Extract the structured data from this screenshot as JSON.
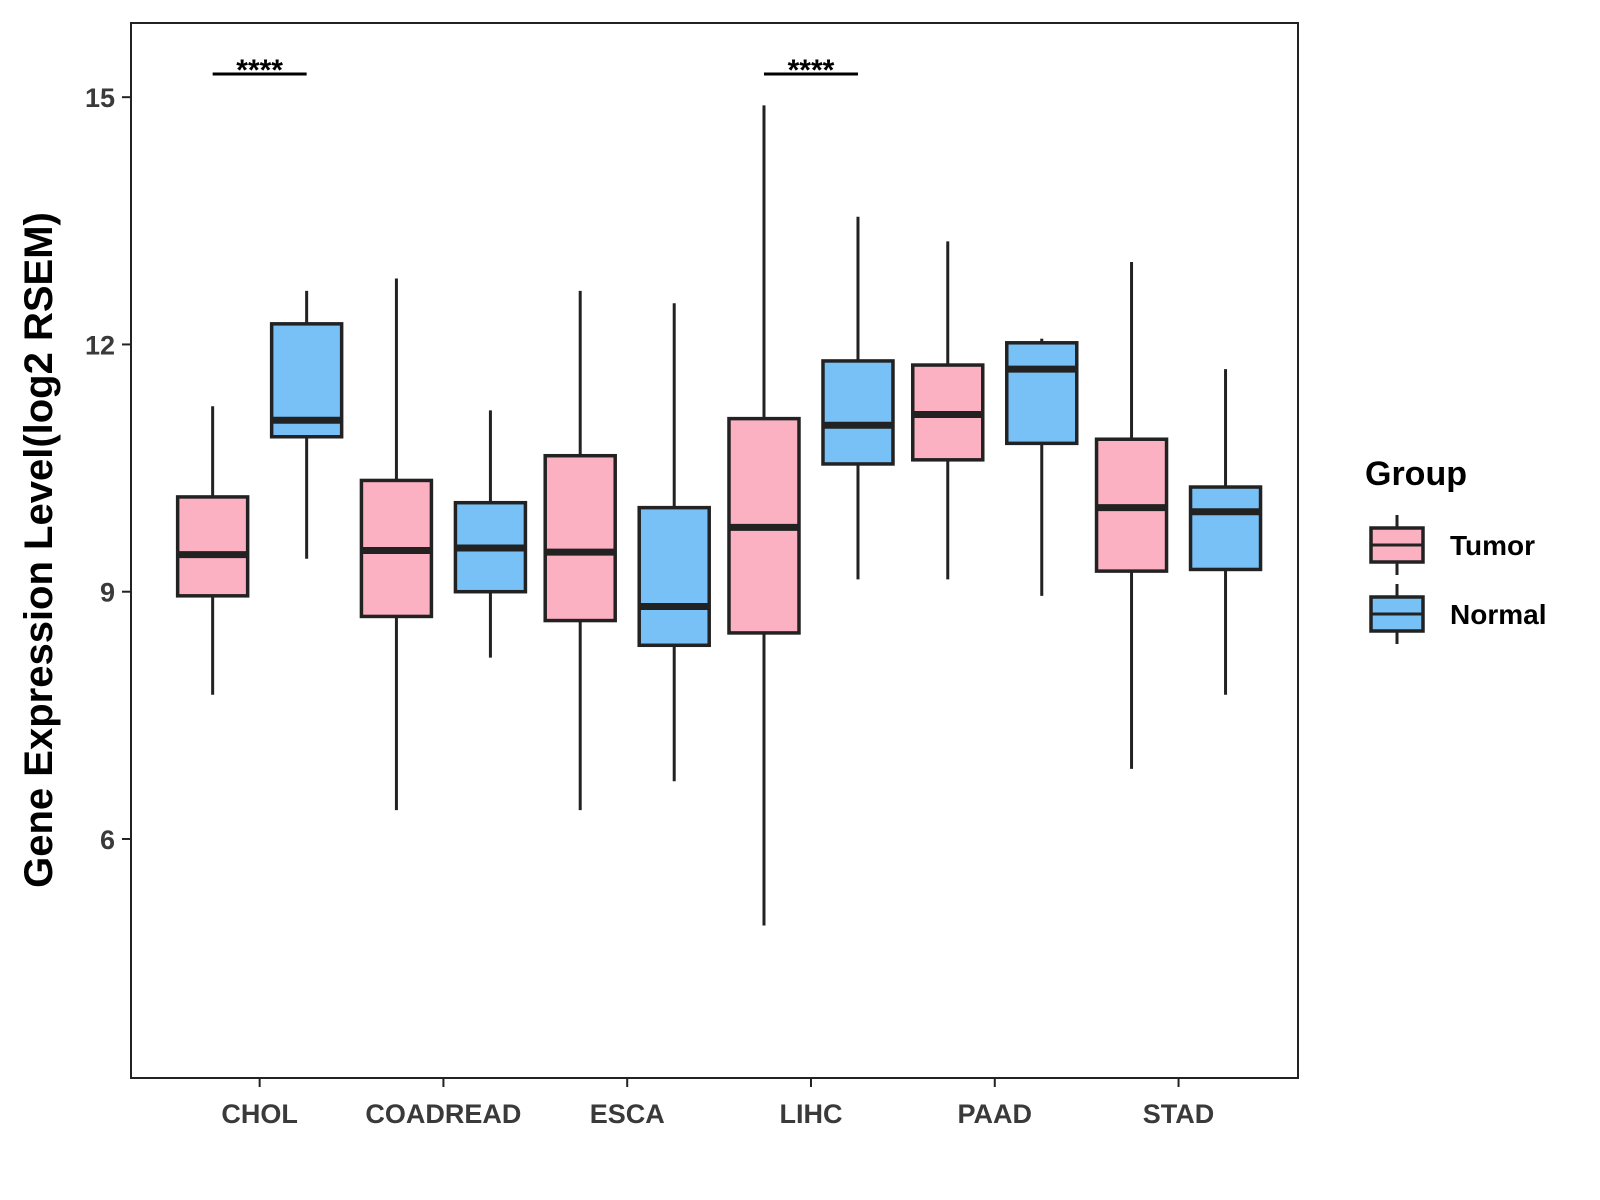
{
  "chart_data": {
    "type": "boxplot",
    "title": "",
    "xlabel": "",
    "ylabel": "Gene Expression Level(log2 RSEM)",
    "ylim": [
      3.1,
      15.9
    ],
    "yticks": [
      6,
      9,
      12,
      15
    ],
    "categories": [
      "CHOL",
      "COADREAD",
      "ESCA",
      "LIHC",
      "PAAD",
      "STAD"
    ],
    "legend": {
      "title": "Group",
      "position": "right"
    },
    "series": [
      {
        "name": "Tumor",
        "color": "#FBB1C2",
        "boxes": [
          {
            "min": 7.75,
            "q1": 8.95,
            "median": 9.45,
            "q3": 10.15,
            "max": 11.25
          },
          {
            "min": 6.35,
            "q1": 8.7,
            "median": 9.5,
            "q3": 10.35,
            "max": 12.8
          },
          {
            "min": 6.35,
            "q1": 8.65,
            "median": 9.48,
            "q3": 10.65,
            "max": 12.65
          },
          {
            "min": 4.95,
            "q1": 8.5,
            "median": 9.78,
            "q3": 11.1,
            "max": 14.9
          },
          {
            "min": 9.15,
            "q1": 10.6,
            "median": 11.15,
            "q3": 11.75,
            "max": 13.25
          },
          {
            "min": 6.85,
            "q1": 9.25,
            "median": 10.02,
            "q3": 10.85,
            "max": 13.0
          }
        ]
      },
      {
        "name": "Normal",
        "color": "#77C1F7",
        "boxes": [
          {
            "min": 9.4,
            "q1": 10.88,
            "median": 11.08,
            "q3": 12.25,
            "max": 12.65
          },
          {
            "min": 8.2,
            "q1": 9.0,
            "median": 9.53,
            "q3": 10.08,
            "max": 11.2
          },
          {
            "min": 6.7,
            "q1": 8.35,
            "median": 8.82,
            "q3": 10.02,
            "max": 12.5
          },
          {
            "min": 9.15,
            "q1": 10.55,
            "median": 11.02,
            "q3": 11.8,
            "max": 13.55
          },
          {
            "min": 8.95,
            "q1": 10.8,
            "median": 11.7,
            "q3": 12.02,
            "max": 12.07
          },
          {
            "min": 7.75,
            "q1": 9.27,
            "median": 9.97,
            "q3": 10.27,
            "max": 11.7
          }
        ]
      }
    ],
    "annotations": [
      {
        "category": "CHOL",
        "text": "****"
      },
      {
        "category": "LIHC",
        "text": "****"
      }
    ]
  }
}
